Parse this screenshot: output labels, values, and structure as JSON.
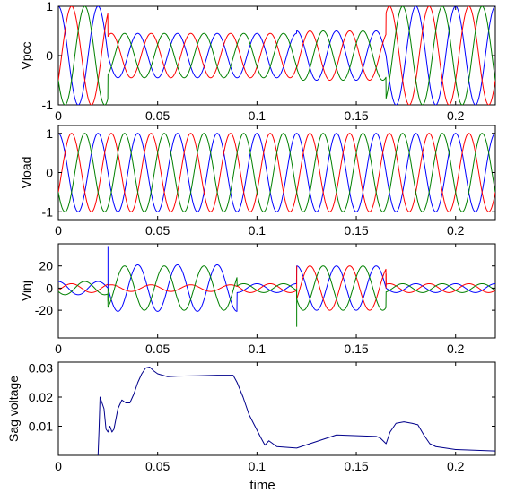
{
  "chart_data": [
    {
      "type": "line",
      "ylabel": "Vpcc",
      "xlabel": "",
      "xlim": [
        0,
        0.22
      ],
      "ylim": [
        -1,
        1
      ],
      "xticks": [
        0,
        0.05,
        0.1,
        0.15,
        0.2
      ],
      "xtick_labels": [
        "0",
        "0.05",
        "0.1",
        "0.15",
        "0.2"
      ],
      "yticks": [
        -1,
        0,
        1
      ],
      "ytick_labels": [
        "-1",
        "0",
        "1"
      ],
      "grid": false,
      "frequency_hz": 50,
      "series": [
        {
          "phase_deg": 90,
          "color": "#0000ff"
        },
        {
          "phase_deg": -30,
          "color": "#ff0000"
        },
        {
          "phase_deg": 210,
          "color": "#008000"
        }
      ],
      "amplitude_profile": [
        [
          0,
          1.0
        ],
        [
          0.025,
          1.0
        ],
        [
          0.025,
          0.45
        ],
        [
          0.12,
          0.45
        ],
        [
          0.12,
          0.5
        ],
        [
          0.165,
          0.5
        ],
        [
          0.165,
          1.0
        ],
        [
          0.22,
          1.0
        ]
      ]
    },
    {
      "type": "line",
      "ylabel": "Vload",
      "xlabel": "",
      "xlim": [
        0,
        0.22
      ],
      "ylim": [
        -1.2,
        1.2
      ],
      "xticks": [
        0,
        0.05,
        0.1,
        0.15,
        0.2
      ],
      "xtick_labels": [
        "0",
        "0.05",
        "0.1",
        "0.15",
        "0.2"
      ],
      "yticks": [
        -1,
        0,
        1
      ],
      "ytick_labels": [
        "-1",
        "0",
        "1"
      ],
      "grid": false,
      "frequency_hz": 50,
      "series": [
        {
          "phase_deg": 90,
          "color": "#0000ff"
        },
        {
          "phase_deg": -30,
          "color": "#ff0000"
        },
        {
          "phase_deg": 210,
          "color": "#008000"
        }
      ],
      "amplitude_profile": [
        [
          0,
          1.0
        ],
        [
          0.22,
          1.0
        ]
      ]
    },
    {
      "type": "line",
      "ylabel": "Vinj",
      "xlabel": "",
      "xlim": [
        0,
        0.22
      ],
      "ylim": [
        -45,
        40
      ],
      "xticks": [
        0,
        0.05,
        0.1,
        0.15,
        0.2
      ],
      "xtick_labels": [
        "0",
        "0.05",
        "0.1",
        "0.15",
        "0.2"
      ],
      "yticks": [
        -20,
        0,
        20
      ],
      "ytick_labels": [
        "-20",
        "0",
        "20"
      ],
      "grid": false,
      "frequency_hz": 50,
      "series": [
        {
          "phase_deg": 90,
          "color": "#0000ff",
          "amplitude_profile": [
            [
              0,
              6
            ],
            [
              0.025,
              6
            ],
            [
              0.025,
              21
            ],
            [
              0.09,
              21
            ],
            [
              0.09,
              4
            ],
            [
              0.12,
              4
            ],
            [
              0.12,
              20
            ],
            [
              0.165,
              20
            ],
            [
              0.165,
              4
            ],
            [
              0.22,
              4
            ]
          ]
        },
        {
          "phase_deg": -30,
          "color": "#ff0000",
          "amplitude_profile": [
            [
              0,
              4
            ],
            [
              0.025,
              4
            ],
            [
              0.025,
              3
            ],
            [
              0.09,
              3
            ],
            [
              0.09,
              4
            ],
            [
              0.12,
              4
            ],
            [
              0.12,
              20
            ],
            [
              0.165,
              20
            ],
            [
              0.165,
              4
            ],
            [
              0.22,
              4
            ]
          ]
        },
        {
          "phase_deg": 210,
          "color": "#008000",
          "amplitude_profile": [
            [
              0,
              6
            ],
            [
              0.025,
              6
            ],
            [
              0.025,
              20
            ],
            [
              0.09,
              20
            ],
            [
              0.09,
              4
            ],
            [
              0.12,
              4
            ],
            [
              0.12,
              20
            ],
            [
              0.165,
              20
            ],
            [
              0.165,
              4
            ],
            [
              0.22,
              4
            ]
          ]
        }
      ],
      "spikes": [
        {
          "x": 0.025,
          "y": 38,
          "color": "#0000ff"
        },
        {
          "x": 0.025,
          "y": -12,
          "color": "#008000"
        },
        {
          "x": 0.12,
          "y": -35,
          "color": "#008000"
        },
        {
          "x": 0.12,
          "y": 20,
          "color": "#ff0000"
        },
        {
          "x": 0.165,
          "y": 13,
          "color": "#ff0000"
        }
      ]
    },
    {
      "type": "line",
      "ylabel": "Sag voltage",
      "xlabel": "time",
      "xlim": [
        0,
        0.22
      ],
      "ylim": [
        0,
        0.032
      ],
      "xticks": [
        0,
        0.05,
        0.1,
        0.15,
        0.2
      ],
      "xtick_labels": [
        "0",
        "0.05",
        "0.1",
        "0.15",
        "0.2"
      ],
      "yticks": [
        0.01,
        0.02,
        0.03
      ],
      "ytick_labels": [
        "0.01",
        "0.02",
        "0.03"
      ],
      "grid": false,
      "series": [
        {
          "color": "#00008b",
          "x": [
            0.02,
            0.0205,
            0.021,
            0.022,
            0.023,
            0.024,
            0.025,
            0.026,
            0.027,
            0.028,
            0.03,
            0.032,
            0.034,
            0.036,
            0.038,
            0.04,
            0.042,
            0.044,
            0.046,
            0.048,
            0.05,
            0.055,
            0.06,
            0.07,
            0.08,
            0.088,
            0.09,
            0.093,
            0.096,
            0.099,
            0.102,
            0.104,
            0.106,
            0.11,
            0.12,
            0.14,
            0.16,
            0.162,
            0.165,
            0.167,
            0.17,
            0.174,
            0.178,
            0.181,
            0.184,
            0.187,
            0.19,
            0.2,
            0.22
          ],
          "y": [
            0.0,
            0.009,
            0.02,
            0.018,
            0.016,
            0.009,
            0.008,
            0.01,
            0.008,
            0.009,
            0.016,
            0.019,
            0.018,
            0.018,
            0.021,
            0.025,
            0.028,
            0.03,
            0.0303,
            0.029,
            0.028,
            0.027,
            0.0272,
            0.0273,
            0.0275,
            0.0275,
            0.025,
            0.02,
            0.014,
            0.01,
            0.006,
            0.0035,
            0.005,
            0.003,
            0.0025,
            0.007,
            0.0065,
            0.006,
            0.004,
            0.008,
            0.011,
            0.0115,
            0.011,
            0.0105,
            0.007,
            0.004,
            0.003,
            0.002,
            0.0015
          ]
        }
      ]
    }
  ]
}
